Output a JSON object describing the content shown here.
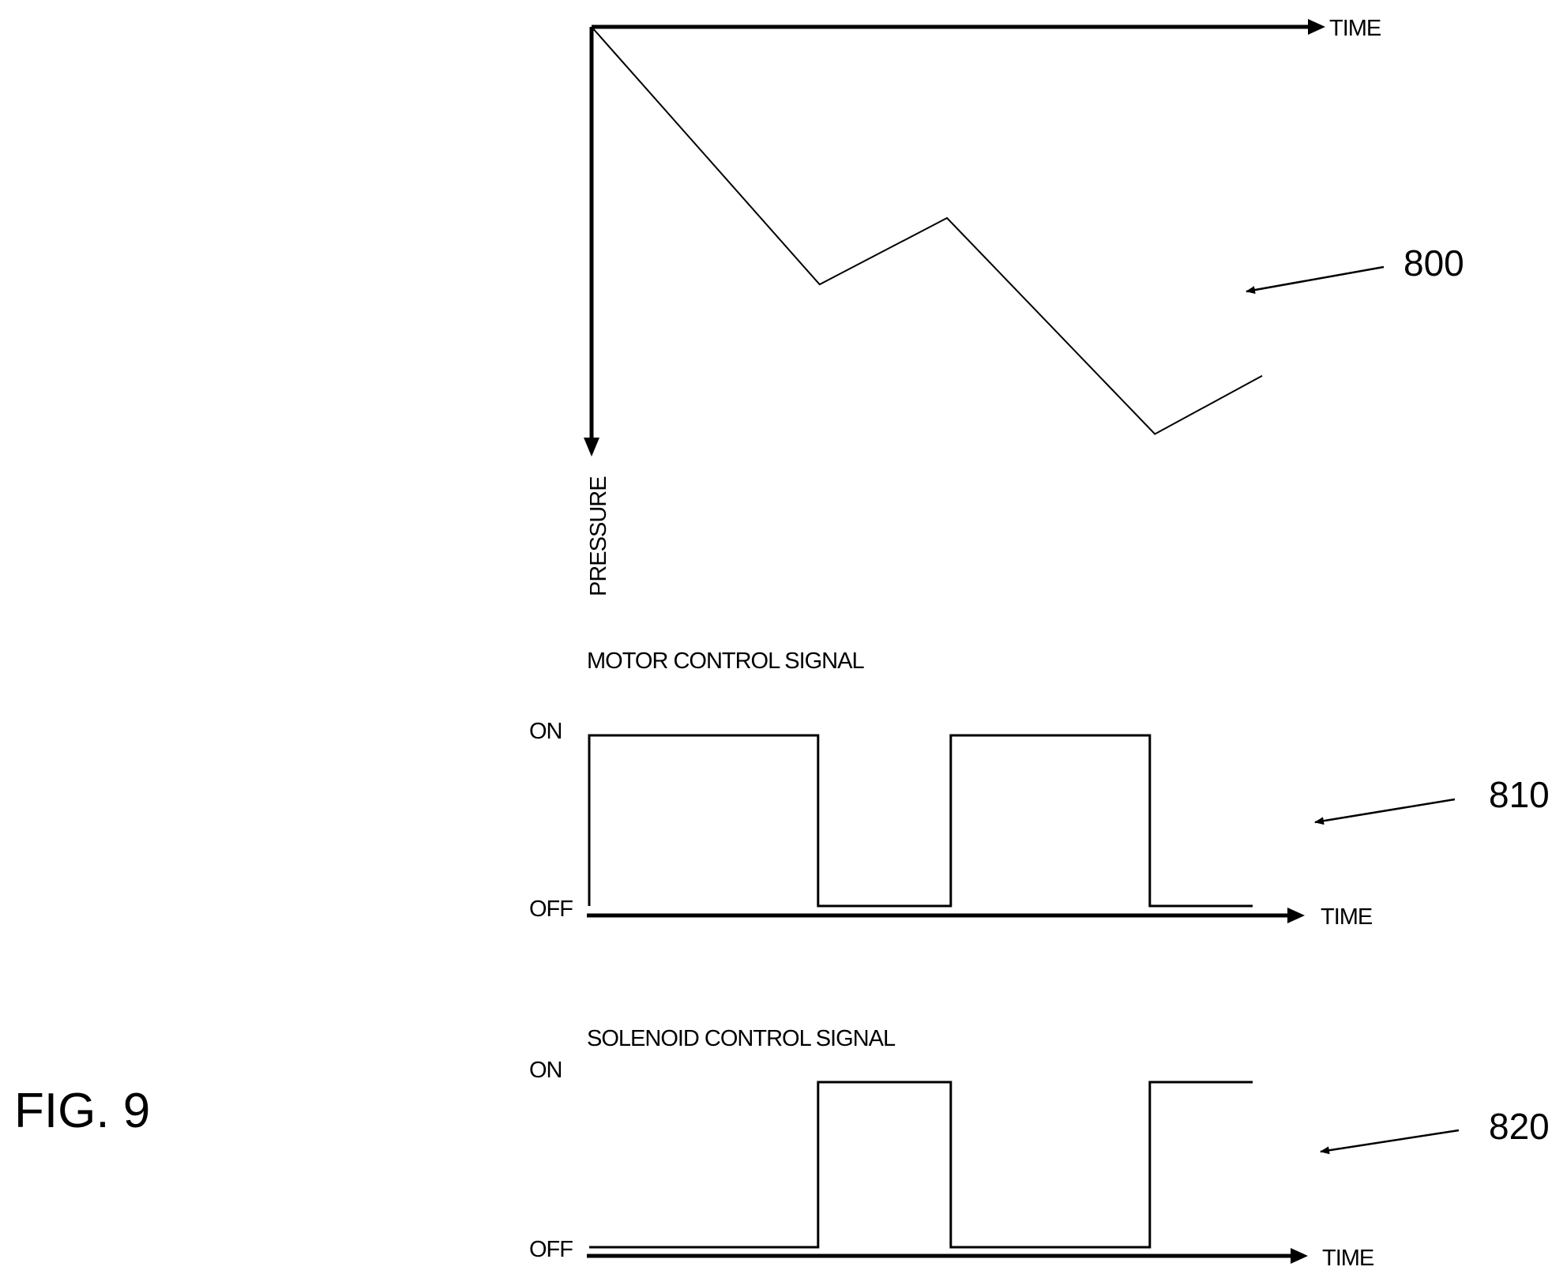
{
  "figure_label": "FIG. 9",
  "panels": {
    "pressure": {
      "ref": "800",
      "x_axis_label": "TIME",
      "y_axis_label": "PRESSURE",
      "trace": [
        [
          0,
          0
        ],
        [
          0.34,
          0.62
        ],
        [
          0.53,
          0.46
        ],
        [
          0.84,
          0.98
        ],
        [
          1.0,
          0.84
        ]
      ]
    },
    "motor": {
      "ref": "810",
      "title": "MOTOR CONTROL SIGNAL",
      "on_label": "ON",
      "off_label": "OFF",
      "x_axis_label": "TIME",
      "states": [
        {
          "start": 0.0,
          "end": 0.345,
          "state": "ON"
        },
        {
          "start": 0.345,
          "end": 0.545,
          "state": "OFF"
        },
        {
          "start": 0.545,
          "end": 0.845,
          "state": "ON"
        },
        {
          "start": 0.845,
          "end": 1.0,
          "state": "OFF"
        }
      ]
    },
    "solenoid": {
      "ref": "820",
      "title": "SOLENOID CONTROL SIGNAL",
      "on_label": "ON",
      "off_label": "OFF",
      "x_axis_label": "TIME",
      "states": [
        {
          "start": 0.0,
          "end": 0.345,
          "state": "OFF"
        },
        {
          "start": 0.345,
          "end": 0.545,
          "state": "ON"
        },
        {
          "start": 0.545,
          "end": 0.845,
          "state": "OFF"
        },
        {
          "start": 0.845,
          "end": 1.0,
          "state": "ON"
        }
      ]
    }
  }
}
